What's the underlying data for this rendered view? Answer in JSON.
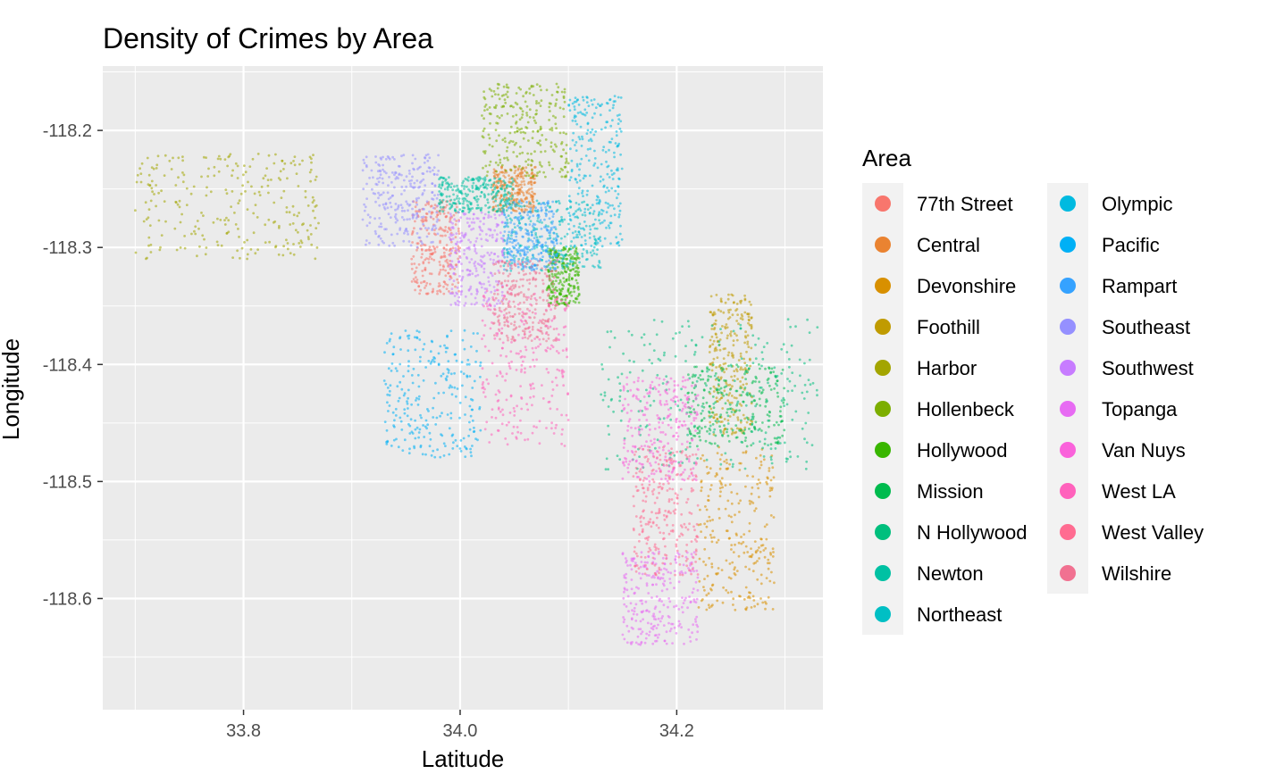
{
  "chart_data": {
    "type": "scatter",
    "title": "Density of Crimes by Area",
    "xlabel": "Latitude",
    "ylabel": "Longitude",
    "xlim": [
      33.67,
      34.335
    ],
    "ylim": [
      -118.695,
      -118.145
    ],
    "x_ticks": [
      "33.8",
      "34.0",
      "34.2"
    ],
    "y_ticks": [
      "-118.2",
      "-118.3",
      "-118.4",
      "-118.5",
      "-118.6"
    ],
    "grid": true,
    "legend_title": "Area",
    "legend_position": "right",
    "series": [
      {
        "name": "77th Street",
        "color": "#F8766D",
        "x": [
          33.955,
          34.0
        ],
        "y": [
          -118.34,
          -118.26
        ]
      },
      {
        "name": "Central",
        "color": "#EA8331",
        "x": [
          34.03,
          34.07
        ],
        "y": [
          -118.27,
          -118.23
        ]
      },
      {
        "name": "Devonshire",
        "color": "#D89000",
        "x": [
          34.22,
          34.29
        ],
        "y": [
          -118.61,
          -118.47
        ]
      },
      {
        "name": "Foothill",
        "color": "#C09B00",
        "x": [
          34.23,
          34.27
        ],
        "y": [
          -118.46,
          -118.34
        ]
      },
      {
        "name": "Harbor",
        "color": "#A3A500",
        "x": [
          33.7,
          33.87
        ],
        "y": [
          -118.31,
          -118.22
        ]
      },
      {
        "name": "Hollenbeck",
        "color": "#7CAE00",
        "x": [
          34.02,
          34.1
        ],
        "y": [
          -118.24,
          -118.16
        ]
      },
      {
        "name": "Hollywood",
        "color": "#39B600",
        "x": [
          34.08,
          34.11
        ],
        "y": [
          -118.35,
          -118.3
        ]
      },
      {
        "name": "Mission",
        "color": "#00BB4E",
        "x": [
          34.21,
          34.3
        ],
        "y": [
          -118.47,
          -118.4
        ]
      },
      {
        "name": "N Hollywood",
        "color": "#00BF7D",
        "x": [
          34.13,
          34.33
        ],
        "y": [
          -118.49,
          -118.36
        ]
      },
      {
        "name": "Newton",
        "color": "#00C1A3",
        "x": [
          33.98,
          34.05
        ],
        "y": [
          -118.27,
          -118.24
        ]
      },
      {
        "name": "Northeast",
        "color": "#00BFC4",
        "x": [
          34.04,
          34.13
        ],
        "y": [
          -118.32,
          -118.26
        ]
      },
      {
        "name": "Olympic",
        "color": "#00BAE0",
        "x": [
          34.1,
          34.15
        ],
        "y": [
          -118.3,
          -118.17
        ]
      },
      {
        "name": "Pacific",
        "color": "#00B0F6",
        "x": [
          33.93,
          34.02
        ],
        "y": [
          -118.48,
          -118.37
        ]
      },
      {
        "name": "Rampart",
        "color": "#35A2FF",
        "x": [
          34.04,
          34.09
        ],
        "y": [
          -118.32,
          -118.26
        ]
      },
      {
        "name": "Southeast",
        "color": "#9590FF",
        "x": [
          33.91,
          33.98
        ],
        "y": [
          -118.3,
          -118.22
        ]
      },
      {
        "name": "Southwest",
        "color": "#C77CFF",
        "x": [
          33.99,
          34.04
        ],
        "y": [
          -118.35,
          -118.27
        ]
      },
      {
        "name": "Topanga",
        "color": "#E76BF3",
        "x": [
          34.15,
          34.22
        ],
        "y": [
          -118.64,
          -118.56
        ]
      },
      {
        "name": "Van Nuys",
        "color": "#FA62DB",
        "x": [
          34.15,
          34.22
        ],
        "y": [
          -118.5,
          -118.41
        ]
      },
      {
        "name": "West LA",
        "color": "#FF62BC",
        "x": [
          34.02,
          34.1
        ],
        "y": [
          -118.47,
          -118.33
        ]
      },
      {
        "name": "West Valley",
        "color": "#FF6C91",
        "x": [
          34.16,
          34.22
        ],
        "y": [
          -118.58,
          -118.47
        ]
      },
      {
        "name": "Wilshire",
        "color": "#F17191",
        "x": [
          34.03,
          34.09
        ],
        "y": [
          -118.38,
          -118.31
        ]
      }
    ]
  }
}
